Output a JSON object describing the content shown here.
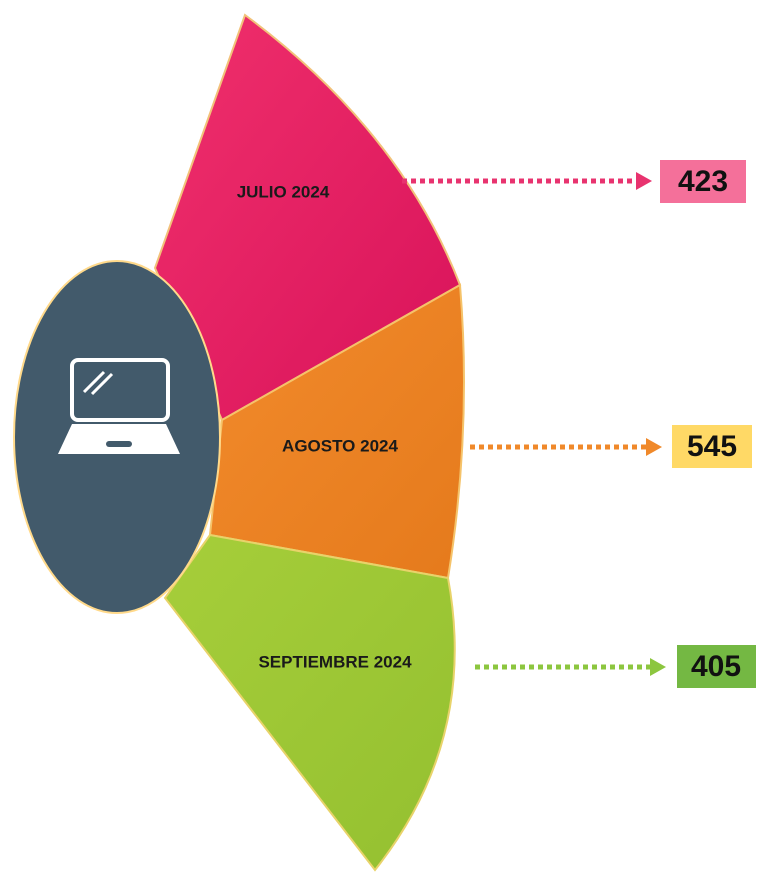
{
  "items": [
    {
      "label": "JULIO 2024",
      "value": 423
    },
    {
      "label": "AGOSTO 2024",
      "value": 545
    },
    {
      "label": "SEPTIEMBRE 2024",
      "value": 405
    }
  ]
}
